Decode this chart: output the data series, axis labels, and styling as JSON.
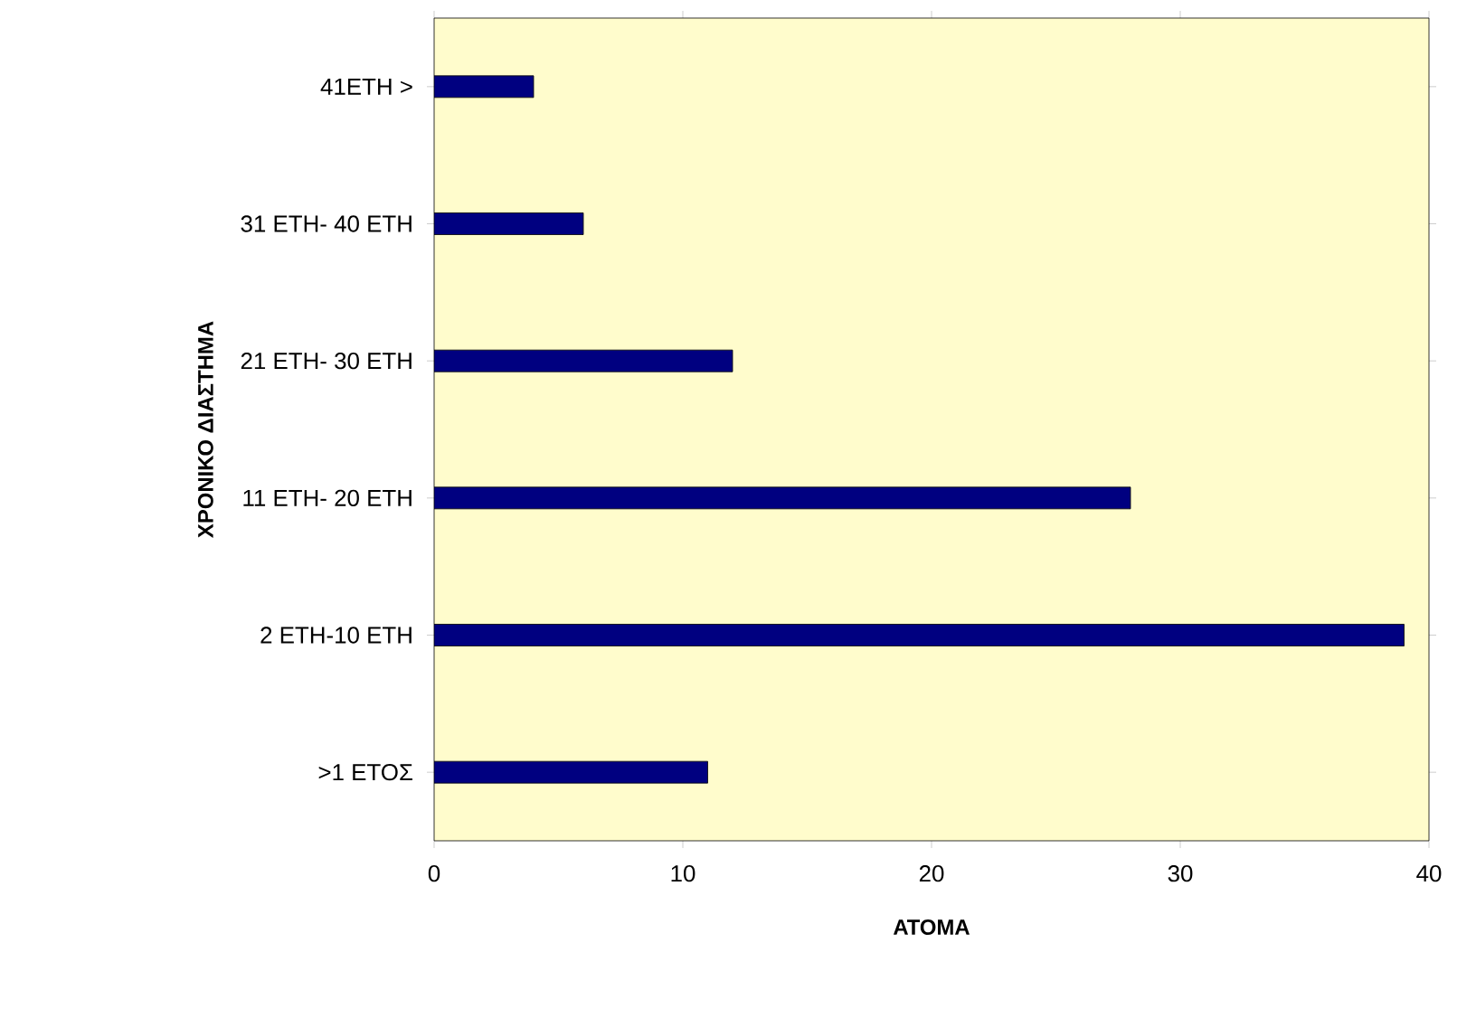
{
  "chart_data": {
    "type": "bar",
    "orientation": "horizontal",
    "xlabel": "ΑΤΟΜΑ",
    "ylabel": "ΧΡΟΝΙΚΟ ΔΙΑΣΤΗΜΑ",
    "categories": [
      "41ΕΤΗ >",
      "31 ΕΤΗ- 40 ΕΤΗ",
      "21 ΕΤΗ- 30 ΕΤΗ",
      "11 ΕΤΗ- 20 ΕΤΗ",
      "2 ΕΤΗ-10 ΕΤΗ",
      ">1 ΕΤΟΣ"
    ],
    "values": [
      4,
      6,
      12,
      28,
      39,
      11
    ],
    "color": "#000080",
    "xlim": [
      0,
      40
    ],
    "xticks": [
      0,
      10,
      20,
      30,
      40
    ],
    "grid": false
  }
}
